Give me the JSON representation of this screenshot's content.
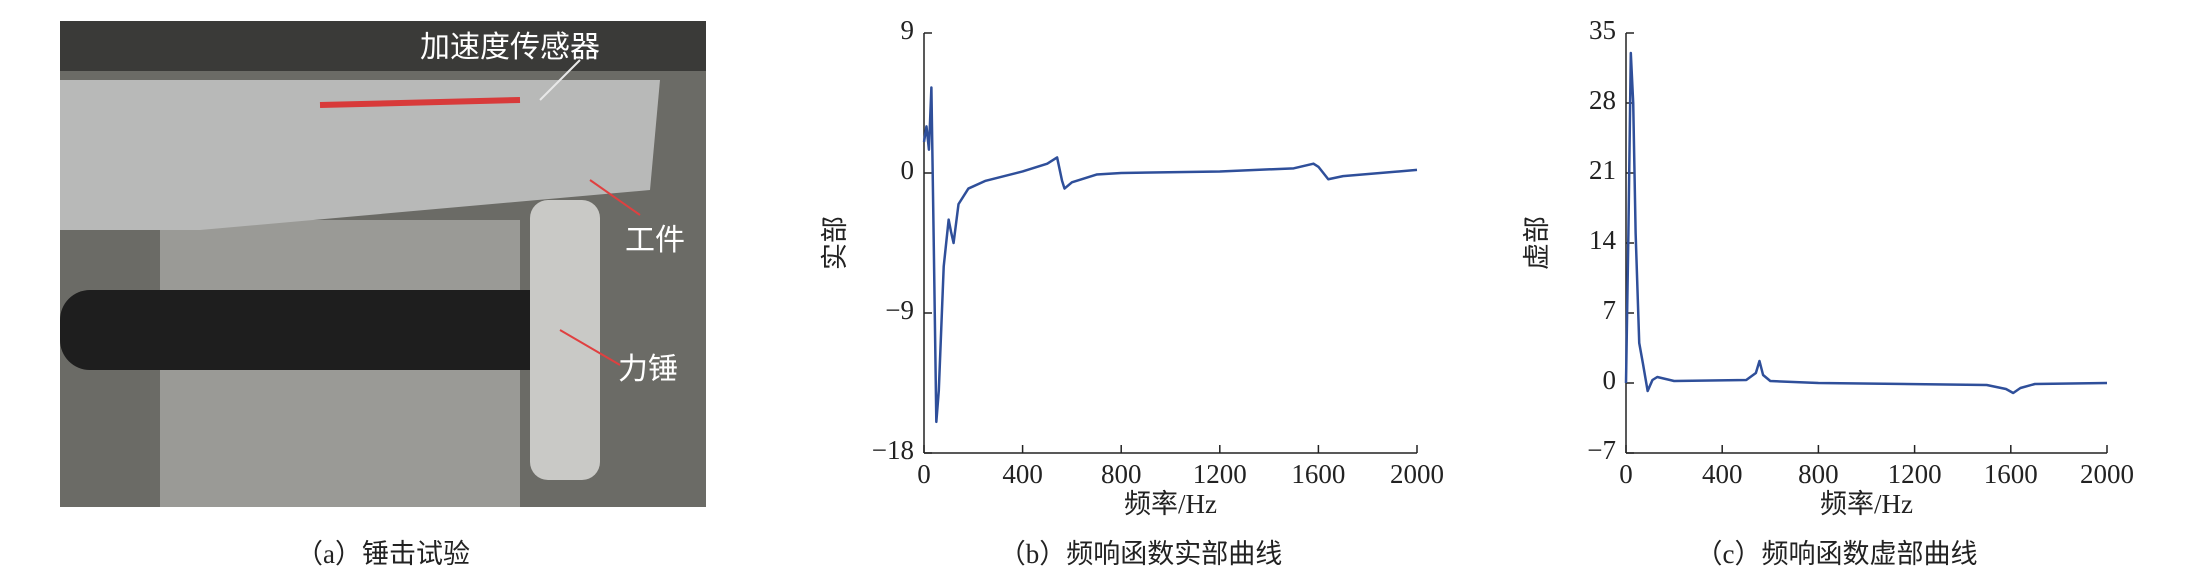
{
  "photo": {
    "labels": [
      "加速度传感器",
      "工件",
      "力锤"
    ],
    "caption": "（a）锤击试验"
  },
  "chart_data": [
    {
      "type": "line",
      "ylabel": "实部",
      "xlabel": "频率/Hz",
      "caption": "（b）频响函数实部曲线",
      "color": "#2f4f9a",
      "x": [
        0,
        10,
        20,
        30,
        40,
        50,
        60,
        70,
        80,
        100,
        110,
        120,
        140,
        180,
        250,
        400,
        500,
        540,
        560,
        570,
        600,
        700,
        800,
        1200,
        1500,
        1580,
        1600,
        1640,
        1700,
        2000
      ],
      "values": [
        2,
        3,
        1.5,
        5.5,
        -5,
        -16,
        -14,
        -10,
        -6,
        -3,
        -3.8,
        -4.5,
        -2,
        -1,
        -0.5,
        0.1,
        0.6,
        1,
        -0.5,
        -1,
        -0.6,
        -0.1,
        0,
        0.1,
        0.3,
        0.6,
        0.4,
        -0.4,
        -0.2,
        0.2
      ],
      "xlim": [
        0,
        2000
      ],
      "xticks": [
        0,
        400,
        800,
        1200,
        1600,
        2000
      ],
      "ylim": [
        -18,
        9
      ],
      "yticks": [
        {
          "value": -18,
          "label": "−18"
        },
        {
          "value": -9,
          "label": "−9"
        },
        0,
        9
      ]
    },
    {
      "type": "line",
      "ylabel": "虚部",
      "xlabel": "频率/Hz",
      "caption": "（c）频响函数虚部曲线",
      "color": "#2f4f9a",
      "x": [
        0,
        10,
        20,
        30,
        40,
        55,
        70,
        90,
        110,
        130,
        200,
        500,
        540,
        555,
        570,
        600,
        800,
        1500,
        1580,
        1610,
        1640,
        1700,
        2000
      ],
      "values": [
        0,
        15,
        33,
        28,
        15,
        4,
        2,
        -0.8,
        0.3,
        0.6,
        0.2,
        0.3,
        1,
        2.2,
        0.8,
        0.2,
        0,
        -0.2,
        -0.6,
        -1,
        -0.5,
        -0.1,
        0
      ],
      "xlim": [
        0,
        2000
      ],
      "xticks": [
        0,
        400,
        800,
        1200,
        1600,
        2000
      ],
      "ylim": [
        -7,
        35
      ],
      "yticks": [
        {
          "value": -7,
          "label": "−7"
        },
        0,
        7,
        14,
        21,
        28,
        35
      ]
    }
  ]
}
